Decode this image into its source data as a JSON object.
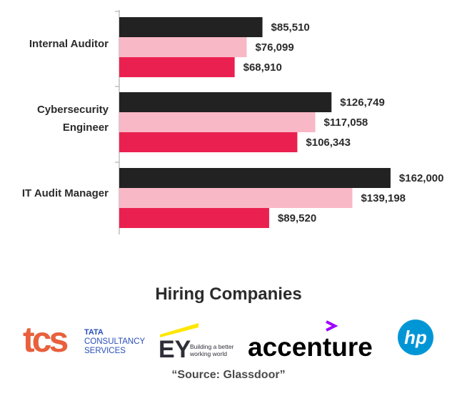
{
  "chart_data": {
    "type": "bar",
    "orientation": "horizontal",
    "categories": [
      "Internal Auditor",
      "Cybersecurity Engineer",
      "IT Audit Manager"
    ],
    "series": [
      {
        "values": [
          85510,
          126749,
          162000
        ],
        "labels": [
          "$85,510",
          "$126,749",
          "$162,000"
        ],
        "color": "#222222"
      },
      {
        "values": [
          76099,
          117058,
          139198
        ],
        "labels": [
          "$76,099",
          "$117,058",
          "$139,198"
        ],
        "color": "#f9b8c6"
      },
      {
        "values": [
          68910,
          106343,
          89520
        ],
        "labels": [
          "$68,910",
          "$106,343",
          "$89,520"
        ],
        "color": "#ea2150"
      }
    ],
    "xlim": [
      0,
      168000
    ],
    "grid": false,
    "legend": "none"
  },
  "section": {
    "title": "Hiring Companies",
    "source": "“Source: Glassdoor”"
  },
  "logos": {
    "tcs": {
      "mark": "tcs",
      "line1": "TATA",
      "line2": "CONSULTANCY",
      "line3": "SERVICES",
      "color": "#2a4fb8",
      "mark_color": "#e8603c"
    },
    "ey": {
      "mark": "EY",
      "tagline1": "Building a better",
      "tagline2": "working world",
      "accent": "#ffe600"
    },
    "accenture": {
      "text": "accenture",
      "accent": "#a100ff"
    },
    "hp": {
      "text": "hp",
      "color": "#0096d6"
    }
  }
}
